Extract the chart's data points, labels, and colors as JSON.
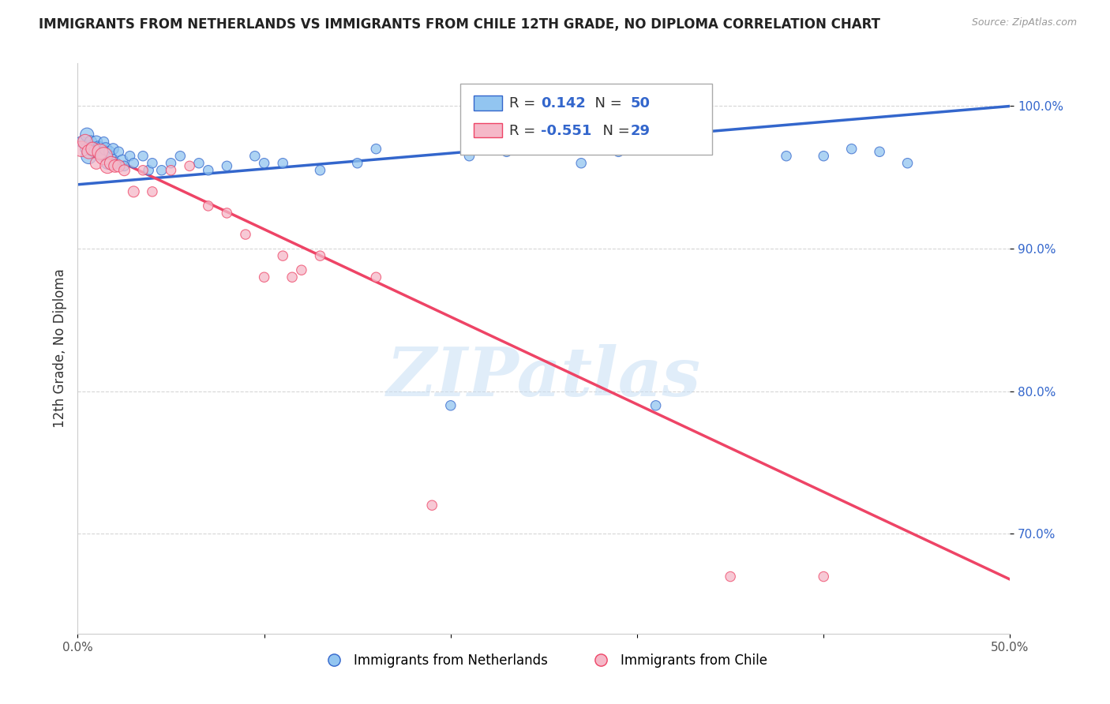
{
  "title": "IMMIGRANTS FROM NETHERLANDS VS IMMIGRANTS FROM CHILE 12TH GRADE, NO DIPLOMA CORRELATION CHART",
  "source": "Source: ZipAtlas.com",
  "xlabel_blue": "Immigrants from Netherlands",
  "xlabel_pink": "Immigrants from Chile",
  "ylabel": "12th Grade, No Diploma",
  "xlim": [
    0.0,
    0.5
  ],
  "ylim": [
    0.63,
    1.03
  ],
  "xticks": [
    0.0,
    0.1,
    0.2,
    0.3,
    0.4,
    0.5
  ],
  "xtick_labels": [
    "0.0%",
    "",
    "",
    "",
    "",
    "50.0%"
  ],
  "yticks": [
    0.7,
    0.8,
    0.9,
    1.0
  ],
  "ytick_labels": [
    "70.0%",
    "80.0%",
    "90.0%",
    "100.0%"
  ],
  "R_blue": "0.142",
  "N_blue": "50",
  "R_pink": "-0.551",
  "N_pink": "29",
  "blue_color": "#92C5F0",
  "pink_color": "#F5B8C8",
  "blue_line_color": "#3366CC",
  "pink_line_color": "#EE4466",
  "watermark": "ZIPatlas",
  "blue_line_x0": 0.0,
  "blue_line_y0": 0.945,
  "blue_line_x1": 0.5,
  "blue_line_y1": 1.0,
  "pink_line_x0": 0.0,
  "pink_line_y0": 0.975,
  "pink_line_x1": 0.5,
  "pink_line_y1": 0.668,
  "blue_scatter_x": [
    0.002,
    0.004,
    0.005,
    0.006,
    0.007,
    0.008,
    0.009,
    0.01,
    0.011,
    0.012,
    0.013,
    0.014,
    0.015,
    0.016,
    0.017,
    0.018,
    0.019,
    0.02,
    0.022,
    0.024,
    0.025,
    0.028,
    0.03,
    0.035,
    0.038,
    0.04,
    0.045,
    0.05,
    0.055,
    0.065,
    0.07,
    0.08,
    0.095,
    0.1,
    0.11,
    0.13,
    0.15,
    0.16,
    0.2,
    0.21,
    0.23,
    0.24,
    0.27,
    0.29,
    0.31,
    0.38,
    0.4,
    0.415,
    0.43,
    0.445
  ],
  "blue_scatter_y": [
    0.975,
    0.97,
    0.98,
    0.965,
    0.975,
    0.97,
    0.968,
    0.975,
    0.972,
    0.97,
    0.965,
    0.975,
    0.97,
    0.96,
    0.968,
    0.965,
    0.97,
    0.96,
    0.968,
    0.962,
    0.958,
    0.965,
    0.96,
    0.965,
    0.955,
    0.96,
    0.955,
    0.96,
    0.965,
    0.96,
    0.955,
    0.958,
    0.965,
    0.96,
    0.96,
    0.955,
    0.96,
    0.97,
    0.79,
    0.965,
    0.968,
    0.97,
    0.96,
    0.968,
    0.79,
    0.965,
    0.965,
    0.97,
    0.968,
    0.96
  ],
  "blue_scatter_sizes": [
    100,
    80,
    150,
    200,
    120,
    180,
    100,
    120,
    80,
    150,
    100,
    80,
    130,
    120,
    100,
    80,
    100,
    120,
    80,
    100,
    80,
    80,
    80,
    80,
    80,
    80,
    80,
    80,
    80,
    80,
    80,
    80,
    80,
    80,
    80,
    80,
    80,
    80,
    80,
    80,
    80,
    80,
    80,
    80,
    80,
    80,
    80,
    80,
    80,
    80
  ],
  "pink_scatter_x": [
    0.002,
    0.004,
    0.006,
    0.008,
    0.01,
    0.012,
    0.014,
    0.016,
    0.018,
    0.02,
    0.022,
    0.025,
    0.03,
    0.035,
    0.04,
    0.05,
    0.06,
    0.07,
    0.08,
    0.09,
    0.1,
    0.11,
    0.115,
    0.12,
    0.13,
    0.16,
    0.19,
    0.35,
    0.4
  ],
  "pink_scatter_y": [
    0.97,
    0.975,
    0.968,
    0.97,
    0.96,
    0.968,
    0.965,
    0.958,
    0.96,
    0.958,
    0.958,
    0.955,
    0.94,
    0.955,
    0.94,
    0.955,
    0.958,
    0.93,
    0.925,
    0.91,
    0.88,
    0.895,
    0.88,
    0.885,
    0.895,
    0.88,
    0.72,
    0.67,
    0.67
  ],
  "pink_scatter_sizes": [
    200,
    180,
    160,
    150,
    120,
    200,
    250,
    180,
    150,
    130,
    120,
    100,
    100,
    80,
    80,
    80,
    80,
    80,
    80,
    80,
    80,
    80,
    80,
    80,
    80,
    80,
    80,
    80,
    80
  ]
}
